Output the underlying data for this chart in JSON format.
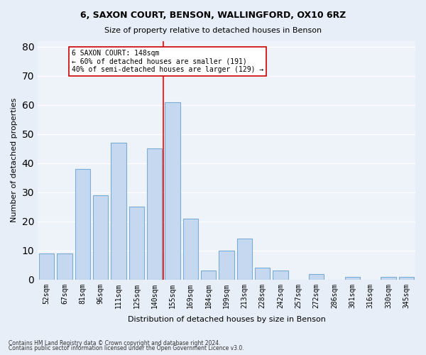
{
  "title1": "6, SAXON COURT, BENSON, WALLINGFORD, OX10 6RZ",
  "title2": "Size of property relative to detached houses in Benson",
  "xlabel": "Distribution of detached houses by size in Benson",
  "ylabel": "Number of detached properties",
  "categories": [
    "52sqm",
    "67sqm",
    "81sqm",
    "96sqm",
    "111sqm",
    "125sqm",
    "140sqm",
    "155sqm",
    "169sqm",
    "184sqm",
    "199sqm",
    "213sqm",
    "228sqm",
    "242sqm",
    "257sqm",
    "272sqm",
    "286sqm",
    "301sqm",
    "316sqm",
    "330sqm",
    "345sqm"
  ],
  "values": [
    9,
    9,
    38,
    29,
    47,
    25,
    45,
    61,
    21,
    3,
    10,
    14,
    4,
    3,
    0,
    2,
    0,
    1,
    0,
    1,
    1
  ],
  "bar_color": "#c5d8f0",
  "bar_edge_color": "#7aadd4",
  "redline_x": 7,
  "annotation_line1": "6 SAXON COURT: 148sqm",
  "annotation_line2": "← 60% of detached houses are smaller (191)",
  "annotation_line3": "40% of semi-detached houses are larger (129) →",
  "annotation_box_color": "#ffffff",
  "annotation_box_edge": "#cc0000",
  "ylim": [
    0,
    82
  ],
  "yticks": [
    0,
    10,
    20,
    30,
    40,
    50,
    60,
    70,
    80
  ],
  "bg_color": "#e8eef7",
  "plot_bg_color": "#eef2f9",
  "grid_color": "#ffffff",
  "footer1": "Contains HM Land Registry data © Crown copyright and database right 2024.",
  "footer2": "Contains public sector information licensed under the Open Government Licence v3.0."
}
